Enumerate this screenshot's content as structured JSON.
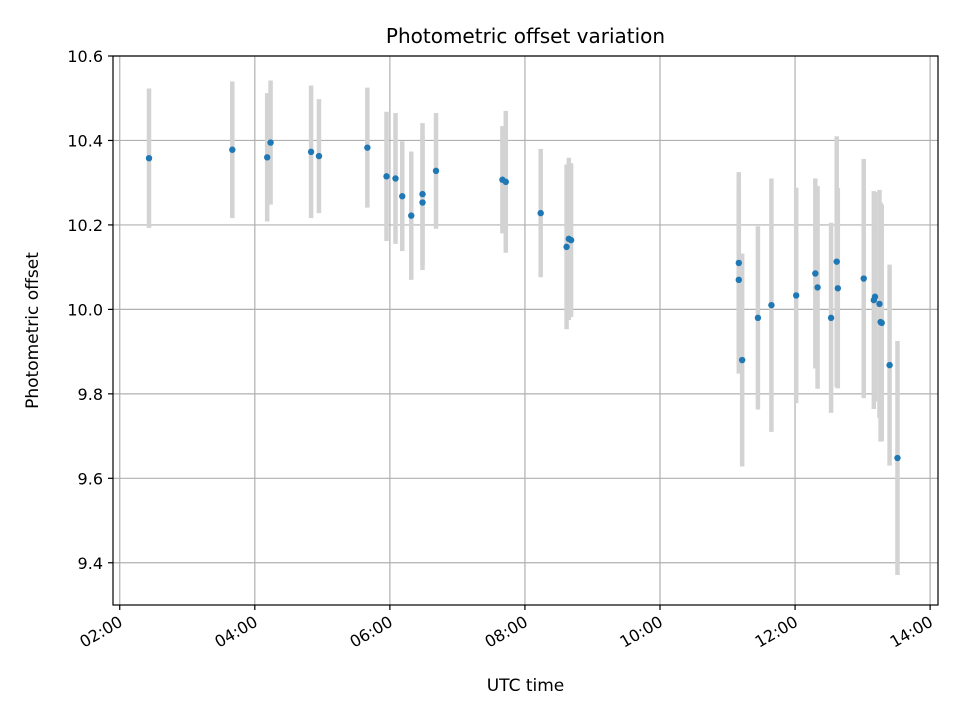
{
  "chart_data": {
    "type": "scatter",
    "title": "Photometric offset variation",
    "xlabel": "UTC time",
    "ylabel": "Photometric offset",
    "x_axis_type": "time",
    "xlim": [
      "01:54",
      "14:07"
    ],
    "ylim": [
      9.3,
      10.6
    ],
    "x_ticks": [
      "02:00",
      "04:00",
      "06:00",
      "08:00",
      "10:00",
      "12:00",
      "14:00"
    ],
    "y_ticks": [
      9.4,
      9.6,
      9.8,
      10.0,
      10.2,
      10.4,
      10.6
    ],
    "y_tick_labels": [
      "9.4",
      "9.6",
      "9.8",
      "10.0",
      "10.2",
      "10.4",
      "10.6"
    ],
    "grid": true,
    "legend": "none",
    "point_color": "#1f77b4",
    "errorbar_color": "#d3d3d3",
    "series": [
      {
        "x": [
          "02:26",
          "03:40",
          "04:11",
          "04:14",
          "04:50",
          "04:57",
          "05:40",
          "05:57",
          "06:05",
          "06:11",
          "06:19",
          "06:29",
          "06:29",
          "06:41",
          "07:40",
          "07:43",
          "08:14",
          "08:37",
          "08:39",
          "08:41",
          "11:10",
          "11:10",
          "11:13",
          "11:27",
          "11:39",
          "12:01",
          "12:18",
          "12:20",
          "12:32",
          "12:37",
          "12:38",
          "13:01",
          "13:10",
          "13:11",
          "13:15",
          "13:16",
          "13:17",
          "13:24",
          "13:31"
        ],
        "y": [
          10.358,
          10.378,
          10.36,
          10.395,
          10.373,
          10.363,
          10.383,
          10.315,
          10.31,
          10.268,
          10.222,
          10.273,
          10.253,
          10.328,
          10.307,
          10.302,
          10.228,
          10.148,
          10.167,
          10.164,
          10.11,
          10.07,
          9.88,
          9.98,
          10.01,
          10.033,
          10.085,
          10.052,
          9.98,
          10.113,
          10.05,
          10.073,
          10.022,
          10.03,
          10.013,
          9.97,
          9.968,
          9.868,
          9.648
        ],
        "yerr": [
          0.165,
          0.162,
          0.152,
          0.147,
          0.157,
          0.135,
          0.142,
          0.153,
          0.155,
          0.13,
          0.152,
          0.168,
          0.16,
          0.137,
          0.127,
          0.168,
          0.152,
          0.195,
          0.192,
          0.182,
          0.215,
          0.222,
          0.252,
          0.217,
          0.3,
          0.255,
          0.225,
          0.24,
          0.225,
          0.297,
          0.237,
          0.283,
          0.258,
          0.248,
          0.27,
          0.283,
          0.28,
          0.238,
          0.277
        ]
      }
    ]
  }
}
